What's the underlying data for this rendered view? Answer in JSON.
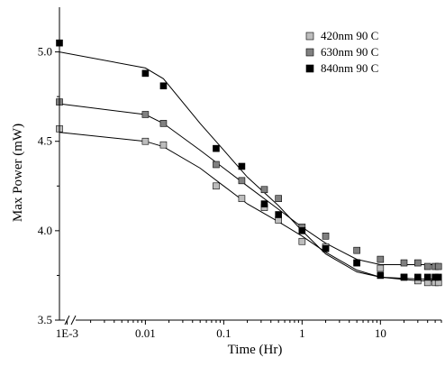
{
  "chart_data": {
    "type": "scatter",
    "title": "",
    "xlabel": "Time (Hr)",
    "ylabel": "Max Power (mW)",
    "x_scale": "log",
    "xlim": [
      0.0008,
      60
    ],
    "ylim": [
      3.5,
      5.25
    ],
    "x_ticks": [
      {
        "value": 0.001,
        "label": "1E-3"
      },
      {
        "value": 0.01,
        "label": "0.01"
      },
      {
        "value": 0.1,
        "label": "0.1"
      },
      {
        "value": 1,
        "label": "1"
      },
      {
        "value": 10,
        "label": "10"
      }
    ],
    "y_ticks": [
      {
        "value": 3.5,
        "label": "3.5"
      },
      {
        "value": 4.0,
        "label": "4.0"
      },
      {
        "value": 4.5,
        "label": "4.5"
      },
      {
        "value": 5.0,
        "label": "5.0"
      }
    ],
    "x_axis_break": true,
    "grid": false,
    "legend_position": "top-right",
    "series": [
      {
        "name": "420nm 90 C",
        "marker_color": "#bdbdbd",
        "points": [
          [
            0.0008,
            4.57
          ],
          [
            0.01,
            4.5
          ],
          [
            0.017,
            4.48
          ],
          [
            0.08,
            4.25
          ],
          [
            0.17,
            4.18
          ],
          [
            0.33,
            4.13
          ],
          [
            0.5,
            4.06
          ],
          [
            1,
            3.94
          ],
          [
            2,
            3.91
          ],
          [
            5,
            3.82
          ],
          [
            10,
            3.79
          ],
          [
            20,
            3.74
          ],
          [
            30,
            3.72
          ],
          [
            40,
            3.71
          ],
          [
            50,
            3.71
          ],
          [
            55,
            3.71
          ]
        ],
        "fit": [
          [
            0.0008,
            4.55
          ],
          [
            0.01,
            4.5
          ],
          [
            0.017,
            4.47
          ],
          [
            0.05,
            4.35
          ],
          [
            0.1,
            4.25
          ],
          [
            0.2,
            4.15
          ],
          [
            0.5,
            4.05
          ],
          [
            1,
            3.97
          ],
          [
            2,
            3.88
          ],
          [
            5,
            3.78
          ],
          [
            10,
            3.74
          ],
          [
            30,
            3.72
          ],
          [
            60,
            3.72
          ]
        ]
      },
      {
        "name": "630nm 90 C",
        "marker_color": "#808080",
        "points": [
          [
            0.0008,
            4.72
          ],
          [
            0.01,
            4.65
          ],
          [
            0.017,
            4.6
          ],
          [
            0.08,
            4.37
          ],
          [
            0.17,
            4.28
          ],
          [
            0.33,
            4.23
          ],
          [
            0.5,
            4.18
          ],
          [
            1,
            4.02
          ],
          [
            2,
            3.97
          ],
          [
            5,
            3.89
          ],
          [
            10,
            3.84
          ],
          [
            20,
            3.82
          ],
          [
            30,
            3.82
          ],
          [
            40,
            3.8
          ],
          [
            50,
            3.8
          ],
          [
            55,
            3.8
          ]
        ],
        "fit": [
          [
            0.0008,
            4.71
          ],
          [
            0.01,
            4.65
          ],
          [
            0.017,
            4.6
          ],
          [
            0.05,
            4.45
          ],
          [
            0.1,
            4.35
          ],
          [
            0.2,
            4.25
          ],
          [
            0.5,
            4.12
          ],
          [
            1,
            4.02
          ],
          [
            2,
            3.93
          ],
          [
            5,
            3.84
          ],
          [
            10,
            3.81
          ],
          [
            30,
            3.81
          ],
          [
            60,
            3.81
          ]
        ]
      },
      {
        "name": "840nm 90 C",
        "marker_color": "#000000",
        "points": [
          [
            0.0008,
            5.05
          ],
          [
            0.01,
            4.88
          ],
          [
            0.017,
            4.81
          ],
          [
            0.08,
            4.46
          ],
          [
            0.17,
            4.36
          ],
          [
            0.33,
            4.15
          ],
          [
            0.5,
            4.09
          ],
          [
            1,
            4.0
          ],
          [
            2,
            3.9
          ],
          [
            5,
            3.82
          ],
          [
            10,
            3.75
          ],
          [
            20,
            3.74
          ],
          [
            30,
            3.74
          ],
          [
            40,
            3.74
          ],
          [
            50,
            3.74
          ],
          [
            55,
            3.74
          ]
        ],
        "fit": [
          [
            0.0008,
            5.0
          ],
          [
            0.01,
            4.91
          ],
          [
            0.017,
            4.85
          ],
          [
            0.05,
            4.6
          ],
          [
            0.1,
            4.45
          ],
          [
            0.2,
            4.3
          ],
          [
            0.5,
            4.14
          ],
          [
            1,
            4.0
          ],
          [
            2,
            3.87
          ],
          [
            5,
            3.77
          ],
          [
            10,
            3.74
          ],
          [
            30,
            3.73
          ],
          [
            60,
            3.73
          ]
        ]
      }
    ]
  }
}
